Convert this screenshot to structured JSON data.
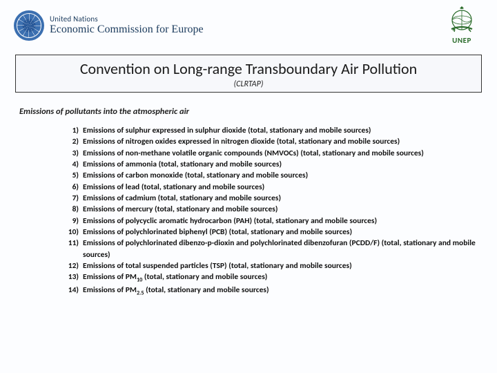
{
  "header": {
    "un_line1": "United Nations",
    "un_line2": "Economic Commission for Europe",
    "unep_label": "UNEP"
  },
  "title": {
    "main": "Convention on Long-range Transboundary Air Pollution",
    "sub": "(CLRTAP)"
  },
  "section_label": "Emissions of pollutants into the atmospheric air",
  "items": [
    {
      "n": "1)",
      "t": "Emissions of sulphur expressed in sulphur dioxide (total, stationary and mobile sources)"
    },
    {
      "n": "2)",
      "t": "Emissions of nitrogen oxides expressed in nitrogen dioxide (total, stationary and mobile sources)"
    },
    {
      "n": "3)",
      "t": "Emissions of non-methane volatile organic compounds (NMVOCs) (total, stationary and mobile sources)"
    },
    {
      "n": "4)",
      "t": "Emissions of ammonia (total, stationary and mobile sources)"
    },
    {
      "n": "5)",
      "t": "Emissions of carbon monoxide (total, stationary and mobile sources)"
    },
    {
      "n": "6)",
      "t": "Emissions of lead (total, stationary and mobile sources)"
    },
    {
      "n": "7)",
      "t": "Emissions of cadmium (total, stationary and mobile sources)"
    },
    {
      "n": "8)",
      "t": "Emissions of mercury (total, stationary and mobile sources)"
    },
    {
      "n": "9)",
      "t": "Emissions of polycyclic aromatic hydrocarbon (PAH) (total, stationary and mobile sources)"
    },
    {
      "n": "10)",
      "t": "Emissions of polychlorinated biphenyl (PCB) (total, stationary and mobile sources)"
    },
    {
      "n": "11)",
      "t": "Emissions of polychlorinated dibenzo-p-dioxin and polychlorinated dibenzofuran (PCDD/F) (total, stationary and mobile sources)"
    },
    {
      "n": "12)",
      "t": "Emissions of total suspended particles (TSP) (total, stationary and mobile sources)"
    },
    {
      "n": "13)",
      "t": "Emissions of PM₁₀ (total, stationary and mobile sources)"
    },
    {
      "n": "14)",
      "t": "Emissions of PM₂.₅ (total, stationary and mobile sources)"
    }
  ],
  "colors": {
    "border": "#333333",
    "bg": "#fcfdff",
    "un_blue": "#2a5a9a",
    "unep_green": "#2a6b2a"
  }
}
